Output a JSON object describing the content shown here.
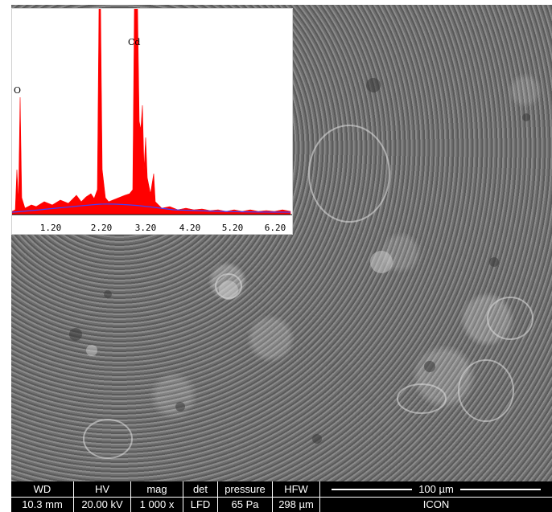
{
  "colors": {
    "spectrum": "#ff0000",
    "background_curve": "#4040ff",
    "info_bar_bg": "#000000",
    "info_bar_text": "#ffffff"
  },
  "eds": {
    "x_ticks": [
      "1.20",
      "2.20",
      "3.20",
      "4.20",
      "5.20",
      "6.20"
    ],
    "peak_labels": {
      "o": "O",
      "cd": "Cd"
    }
  },
  "info_bar": {
    "wd": {
      "label": "WD",
      "value": "10.3 mm"
    },
    "hv": {
      "label": "HV",
      "value": "20.00 kV"
    },
    "mag": {
      "label": "mag",
      "value": "1 000 x"
    },
    "det": {
      "label": "det",
      "value": "LFD"
    },
    "pressure": {
      "label": "pressure",
      "value": "65 Pa"
    },
    "hfw": {
      "label": "HFW",
      "value": "298 µm"
    },
    "scale": {
      "label": "100 µm",
      "value": "ICON"
    }
  }
}
